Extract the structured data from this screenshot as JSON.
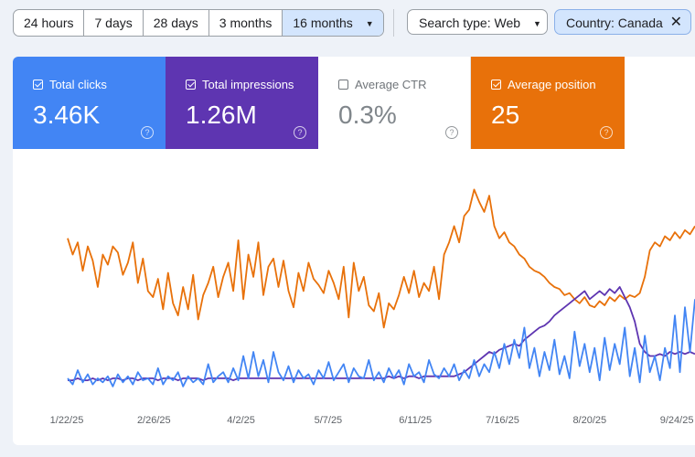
{
  "toolbar": {
    "ranges": [
      {
        "label": "24 hours",
        "active": false
      },
      {
        "label": "7 days",
        "active": false
      },
      {
        "label": "28 days",
        "active": false
      },
      {
        "label": "3 months",
        "active": false
      },
      {
        "label": "16 months",
        "active": true
      }
    ],
    "search_type": "Search type: Web",
    "country_filter": "Country: Canada"
  },
  "metrics": {
    "clicks": {
      "label": "Total clicks",
      "value": "3.46K",
      "checked": true,
      "color": "#4285f4"
    },
    "impressions": {
      "label": "Total impressions",
      "value": "1.26M",
      "checked": true,
      "color": "#5e35b1"
    },
    "ctr": {
      "label": "Average CTR",
      "value": "0.3%",
      "checked": false,
      "color": "#ffffff"
    },
    "position": {
      "label": "Average position",
      "value": "25",
      "checked": true,
      "color": "#e8710a"
    }
  },
  "icons": {
    "help": "help-circle-icon",
    "dropdown": "caret-down-icon",
    "close": "close-icon",
    "checkbox": "checkbox-icon"
  },
  "chart_data": {
    "type": "line",
    "x_tick_labels": [
      "1/22/25",
      "2/26/25",
      "4/2/25",
      "5/7/25",
      "6/11/25",
      "7/16/25",
      "8/20/25",
      "9/24/25"
    ],
    "y_axis_visible": false,
    "grid": false,
    "series": [
      {
        "name": "Average position",
        "color": "#e8710a",
        "values": [
          0.74,
          0.66,
          0.72,
          0.58,
          0.7,
          0.63,
          0.5,
          0.66,
          0.61,
          0.7,
          0.67,
          0.56,
          0.62,
          0.72,
          0.52,
          0.64,
          0.48,
          0.45,
          0.54,
          0.39,
          0.57,
          0.42,
          0.36,
          0.5,
          0.39,
          0.56,
          0.34,
          0.46,
          0.52,
          0.6,
          0.45,
          0.55,
          0.62,
          0.48,
          0.73,
          0.44,
          0.66,
          0.55,
          0.72,
          0.46,
          0.6,
          0.64,
          0.5,
          0.63,
          0.48,
          0.4,
          0.57,
          0.48,
          0.62,
          0.54,
          0.51,
          0.47,
          0.58,
          0.52,
          0.44,
          0.6,
          0.35,
          0.62,
          0.48,
          0.55,
          0.41,
          0.38,
          0.47,
          0.3,
          0.42,
          0.39,
          0.46,
          0.55,
          0.47,
          0.58,
          0.45,
          0.52,
          0.48,
          0.6,
          0.44,
          0.66,
          0.72,
          0.8,
          0.72,
          0.85,
          0.88,
          0.98,
          0.92,
          0.87,
          0.95,
          0.8,
          0.74,
          0.77,
          0.72,
          0.7,
          0.66,
          0.64,
          0.6,
          0.58,
          0.57,
          0.55,
          0.52,
          0.5,
          0.49,
          0.46,
          0.47,
          0.44,
          0.42,
          0.45,
          0.41,
          0.4,
          0.43,
          0.41,
          0.45,
          0.43,
          0.46,
          0.44,
          0.46,
          0.45,
          0.47,
          0.55,
          0.68,
          0.72,
          0.7,
          0.75,
          0.73,
          0.77,
          0.74,
          0.78,
          0.76,
          0.8
        ]
      },
      {
        "name": "Total impressions",
        "color": "#5e35b1",
        "values": [
          0.04,
          0.04,
          0.05,
          0.04,
          0.04,
          0.05,
          0.04,
          0.05,
          0.04,
          0.05,
          0.05,
          0.04,
          0.05,
          0.05,
          0.04,
          0.05,
          0.05,
          0.05,
          0.04,
          0.05,
          0.05,
          0.05,
          0.04,
          0.05,
          0.05,
          0.05,
          0.05,
          0.04,
          0.05,
          0.05,
          0.05,
          0.05,
          0.05,
          0.04,
          0.05,
          0.05,
          0.05,
          0.05,
          0.05,
          0.05,
          0.05,
          0.05,
          0.05,
          0.05,
          0.05,
          0.05,
          0.05,
          0.05,
          0.05,
          0.05,
          0.05,
          0.05,
          0.05,
          0.05,
          0.05,
          0.05,
          0.05,
          0.05,
          0.05,
          0.05,
          0.05,
          0.05,
          0.05,
          0.05,
          0.06,
          0.05,
          0.06,
          0.05,
          0.06,
          0.06,
          0.05,
          0.06,
          0.06,
          0.06,
          0.06,
          0.06,
          0.06,
          0.06,
          0.07,
          0.08,
          0.1,
          0.12,
          0.14,
          0.16,
          0.18,
          0.17,
          0.19,
          0.2,
          0.21,
          0.22,
          0.21,
          0.24,
          0.26,
          0.28,
          0.3,
          0.31,
          0.33,
          0.36,
          0.38,
          0.4,
          0.42,
          0.44,
          0.46,
          0.48,
          0.44,
          0.46,
          0.48,
          0.46,
          0.49,
          0.47,
          0.5,
          0.45,
          0.4,
          0.33,
          0.22,
          0.18,
          0.16,
          0.16,
          0.17,
          0.16,
          0.18,
          0.17,
          0.18,
          0.17,
          0.18,
          0.17
        ]
      },
      {
        "name": "Total clicks",
        "color": "#4285f4",
        "values": [
          0.05,
          0.02,
          0.09,
          0.03,
          0.07,
          0.02,
          0.05,
          0.03,
          0.06,
          0.01,
          0.07,
          0.03,
          0.06,
          0.02,
          0.08,
          0.04,
          0.05,
          0.02,
          0.1,
          0.02,
          0.06,
          0.04,
          0.08,
          0.01,
          0.06,
          0.03,
          0.05,
          0.02,
          0.12,
          0.03,
          0.06,
          0.08,
          0.03,
          0.1,
          0.04,
          0.16,
          0.05,
          0.18,
          0.06,
          0.14,
          0.03,
          0.18,
          0.08,
          0.04,
          0.11,
          0.03,
          0.09,
          0.05,
          0.07,
          0.02,
          0.09,
          0.05,
          0.13,
          0.04,
          0.08,
          0.12,
          0.03,
          0.1,
          0.06,
          0.05,
          0.14,
          0.04,
          0.08,
          0.03,
          0.1,
          0.05,
          0.09,
          0.02,
          0.12,
          0.06,
          0.08,
          0.03,
          0.14,
          0.07,
          0.05,
          0.1,
          0.06,
          0.12,
          0.04,
          0.09,
          0.05,
          0.14,
          0.06,
          0.12,
          0.08,
          0.18,
          0.1,
          0.22,
          0.12,
          0.24,
          0.15,
          0.3,
          0.1,
          0.2,
          0.06,
          0.18,
          0.09,
          0.24,
          0.07,
          0.16,
          0.05,
          0.28,
          0.11,
          0.22,
          0.08,
          0.2,
          0.04,
          0.25,
          0.09,
          0.22,
          0.12,
          0.3,
          0.06,
          0.2,
          0.03,
          0.26,
          0.08,
          0.16,
          0.04,
          0.2,
          0.1,
          0.36,
          0.08,
          0.4,
          0.18,
          0.44
        ]
      }
    ]
  }
}
